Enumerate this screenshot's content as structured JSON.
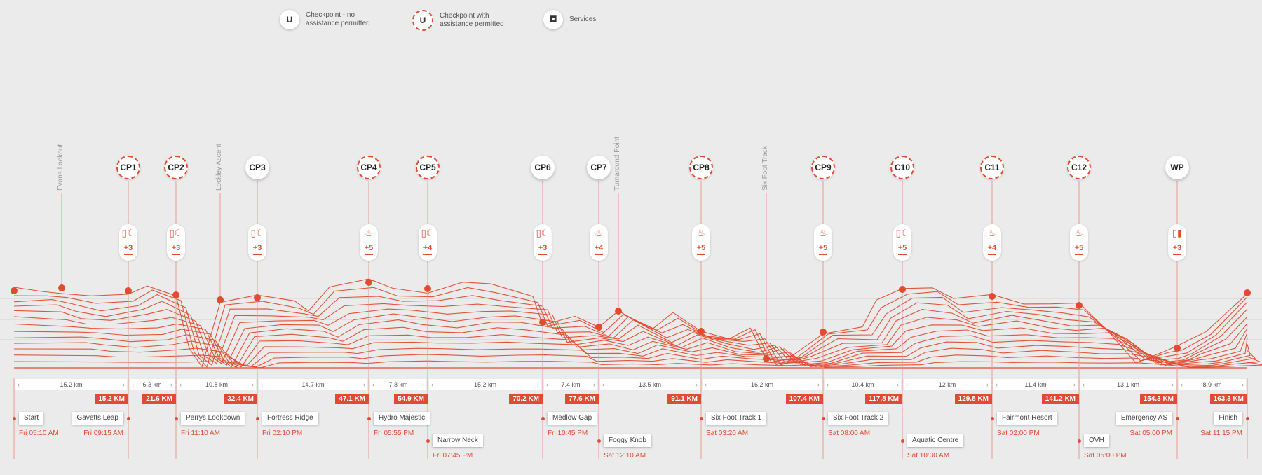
{
  "legend": [
    {
      "symbol": "U",
      "style": "solid",
      "text": "Checkpoint - no assistance permitted"
    },
    {
      "symbol": "U",
      "style": "dashed",
      "text": "Checkpoint with assistance permitted"
    },
    {
      "icon": "services-icon",
      "text": "Services"
    }
  ],
  "colors": {
    "accent": "#e24b2f",
    "background": "#ebebec",
    "grey_line": "#bbbbbb"
  },
  "peaks": [
    "Evans Lookout",
    "Lockley Ascent",
    "Turnaround Point",
    "Six Foot Track"
  ],
  "checkpoints": [
    {
      "label": "CP1",
      "assist": true,
      "services": "+3",
      "icon": "drink-food-icon"
    },
    {
      "label": "CP2",
      "assist": true,
      "services": "+3",
      "icon": "drink-food-icon"
    },
    {
      "label": "CP3",
      "assist": false,
      "services": "+3",
      "icon": "drink-food-icon"
    },
    {
      "label": "CP4",
      "assist": true,
      "services": "+5",
      "icon": "hot-food-icon"
    },
    {
      "label": "CP5",
      "assist": true,
      "services": "+4",
      "icon": "drink-food-icon"
    },
    {
      "label": "CP6",
      "assist": false,
      "services": "+3",
      "icon": "drink-food-icon"
    },
    {
      "label": "CP7",
      "assist": false,
      "services": "+4",
      "icon": "hot-food-icon"
    },
    {
      "label": "CP8",
      "assist": true,
      "services": "+5",
      "icon": "hot-food-icon"
    },
    {
      "label": "CP9",
      "assist": true,
      "services": "+5",
      "icon": "hot-food-icon"
    },
    {
      "label": "C10",
      "assist": true,
      "services": "+5",
      "icon": "drink-food-icon"
    },
    {
      "label": "C11",
      "assist": true,
      "services": "+4",
      "icon": "hot-food-icon"
    },
    {
      "label": "C12",
      "assist": true,
      "services": "+5",
      "icon": "hot-food-icon"
    },
    {
      "label": "WP",
      "assist": false,
      "services": "+3",
      "icon": "drink-bottle-icon"
    }
  ],
  "segments": [
    "15.2 km",
    "6.3 km",
    "10.8 km",
    "14.7 km",
    "7.8 km",
    "15.2 km",
    "7.4 km",
    "13.5 km",
    "16.2 km",
    "10.4 km",
    "12 km",
    "11.4 km",
    "13.1 km",
    "8.9 km"
  ],
  "distances": [
    "15.2 KM",
    "21.6 KM",
    "32.4 KM",
    "47.1 KM",
    "54.9 KM",
    "70.2 KM",
    "77.6 KM",
    "91.1 KM",
    "107.4 KM",
    "117.8 KM",
    "129.8 KM",
    "141.2 KM",
    "154.3 KM",
    "163.3 KM"
  ],
  "locations": [
    {
      "name": "Start",
      "time": "Fri 05:10 AM"
    },
    {
      "name": "Gavetts Leap",
      "time": "Fri 09:15 AM"
    },
    {
      "name": "Perrys Lookdown",
      "time": "Fri 11:10 AM"
    },
    {
      "name": "Fortress Ridge",
      "time": "Fri 02:10 PM"
    },
    {
      "name": "Hydro Majestic",
      "time": "Fri 05:55 PM"
    },
    {
      "name": "Narrow Neck",
      "time": "Fri 07:45 PM"
    },
    {
      "name": "Medlow Gap",
      "time": "Fri 10:45 PM"
    },
    {
      "name": "Foggy Knob",
      "time": "Sat 12:10 AM"
    },
    {
      "name": "Six Foot Track 1",
      "time": "Sat 03:20 AM"
    },
    {
      "name": "Six Foot Track 2",
      "time": "Sat 08:00 AM"
    },
    {
      "name": "Aquatic Centre",
      "time": "Sat 10:30 AM"
    },
    {
      "name": "Fairmont Resort",
      "time": "Sat 02:00 PM"
    },
    {
      "name": "QVH",
      "time": "Sat 05:00 PM"
    },
    {
      "name": "Emergency AS",
      "time": "Sat 05:00 PM"
    },
    {
      "name": "Finish",
      "time": "Sat 11:15 PM"
    }
  ]
}
